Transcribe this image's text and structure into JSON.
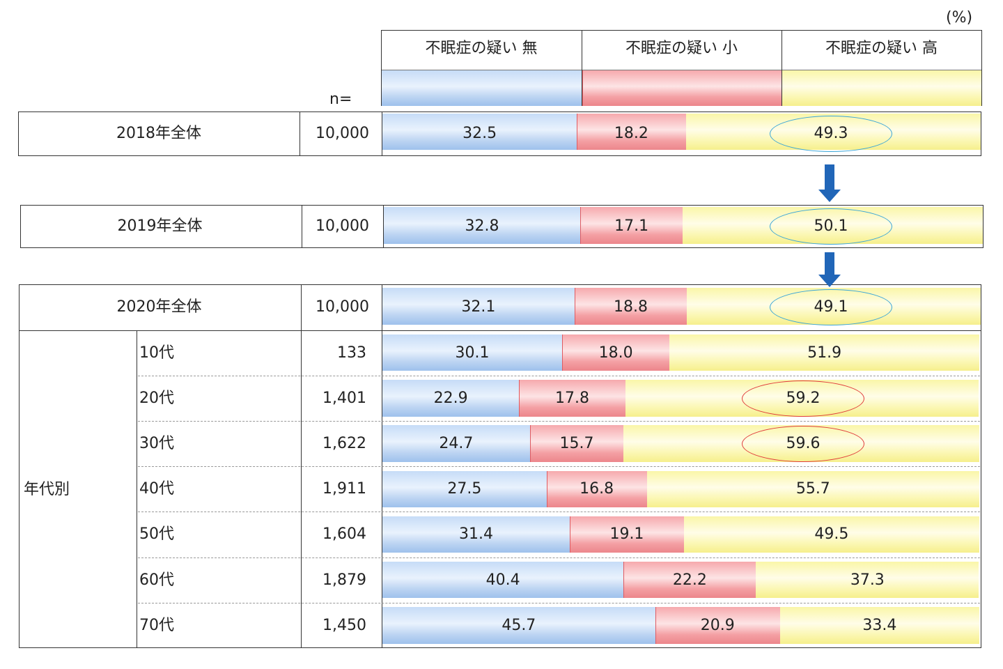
{
  "unit_label": "(%)",
  "n_label": "n=",
  "group_label": "年代別",
  "colors": {
    "none": "#b8d3f3",
    "small": "#f4a4a8",
    "high": "#fbf6b0",
    "oval_blue": "#3aa6d8",
    "oval_red": "#e03b3b",
    "arrow": "#2166b8"
  },
  "chart_data": {
    "type": "bar",
    "stacked": true,
    "orientation": "horizontal",
    "unit": "(%)",
    "legend": [
      "不眠症の疑い 無",
      "不眠症の疑い 小",
      "不眠症の疑い 高"
    ],
    "categories": [
      "2018年全体",
      "2019年全体",
      "2020年全体",
      "10代",
      "20代",
      "30代",
      "40代",
      "50代",
      "60代",
      "70代"
    ],
    "n": [
      "10,000",
      "10,000",
      "10,000",
      "133",
      "1,401",
      "1,622",
      "1,911",
      "1,604",
      "1,879",
      "1,450"
    ],
    "series": [
      {
        "name": "不眠症の疑い 無",
        "values": [
          32.5,
          32.8,
          32.1,
          30.1,
          22.9,
          24.7,
          27.5,
          31.4,
          40.4,
          45.7
        ]
      },
      {
        "name": "不眠症の疑い 小",
        "values": [
          18.2,
          17.1,
          18.8,
          18.0,
          17.8,
          15.7,
          16.8,
          19.1,
          22.2,
          20.9
        ]
      },
      {
        "name": "不眠症の疑い 高",
        "values": [
          49.3,
          50.1,
          49.1,
          51.9,
          59.2,
          59.6,
          55.7,
          49.5,
          37.3,
          33.4
        ]
      }
    ],
    "xlim": [
      0,
      100
    ],
    "highlight_high": [
      "blue",
      "blue",
      "blue",
      null,
      "red",
      "red",
      null,
      null,
      null,
      null
    ]
  }
}
